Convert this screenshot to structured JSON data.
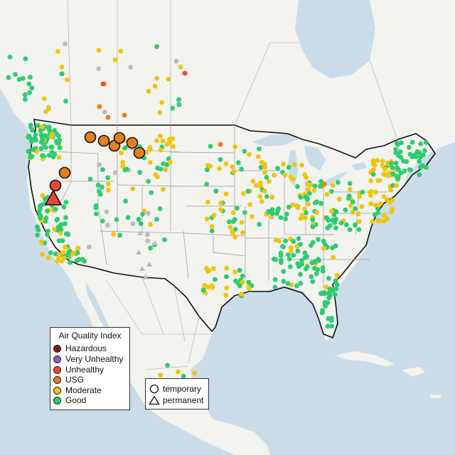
{
  "legend": {
    "title": "Air Quality Index",
    "categories": [
      {
        "label": "Hazardous",
        "color": "#7a1c1c"
      },
      {
        "label": "Very Unhealthy",
        "color": "#8e5bb5"
      },
      {
        "label": "Unhealthy",
        "color": "#e8473b"
      },
      {
        "label": "USG",
        "color": "#e67e22"
      },
      {
        "label": "Moderate",
        "color": "#f1c40f"
      },
      {
        "label": "Good",
        "color": "#2ecc71"
      }
    ]
  },
  "monitor_types": {
    "temporary_label": "temporary",
    "permanent_label": "permanent"
  },
  "colors": {
    "land": "#f2f2ef",
    "water": "#c9dce8",
    "border": "#111111",
    "state_lines": "#9a9a9a",
    "no_data": "#bcbcbc"
  }
}
